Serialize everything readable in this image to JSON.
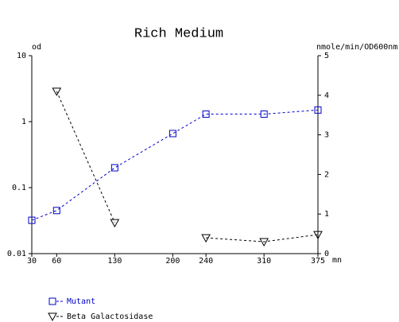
{
  "chart_data": {
    "type": "line",
    "title": "Rich Medium",
    "y_label": "od",
    "y2_label": "nmole/min/OD600nm",
    "x_label": "mn",
    "x": [
      30,
      60,
      130,
      200,
      240,
      310,
      375
    ],
    "xlim": [
      30,
      375
    ],
    "xticks": [
      30,
      60,
      130,
      200,
      240,
      310,
      375
    ],
    "ylim": [
      0.01,
      10
    ],
    "yticks": [
      10,
      1,
      0.1,
      0.01
    ],
    "ylog": true,
    "y2lim": [
      0,
      5
    ],
    "y2ticks": [
      0,
      1,
      2,
      3,
      4,
      5
    ],
    "legend": "bottom-left",
    "series": [
      {
        "name": "Mutant",
        "color": "#0000cc",
        "marker": "square",
        "values": [
          0.032,
          0.045,
          0.2,
          0.66,
          1.3,
          1.3,
          1.5
        ]
      },
      {
        "name": "Beta Galactosidase",
        "color": "#000000",
        "marker": "triangle-down",
        "axis": "y2",
        "values": [
          null,
          4.1,
          0.78,
          null,
          0.4,
          0.3,
          0.48
        ]
      }
    ]
  }
}
